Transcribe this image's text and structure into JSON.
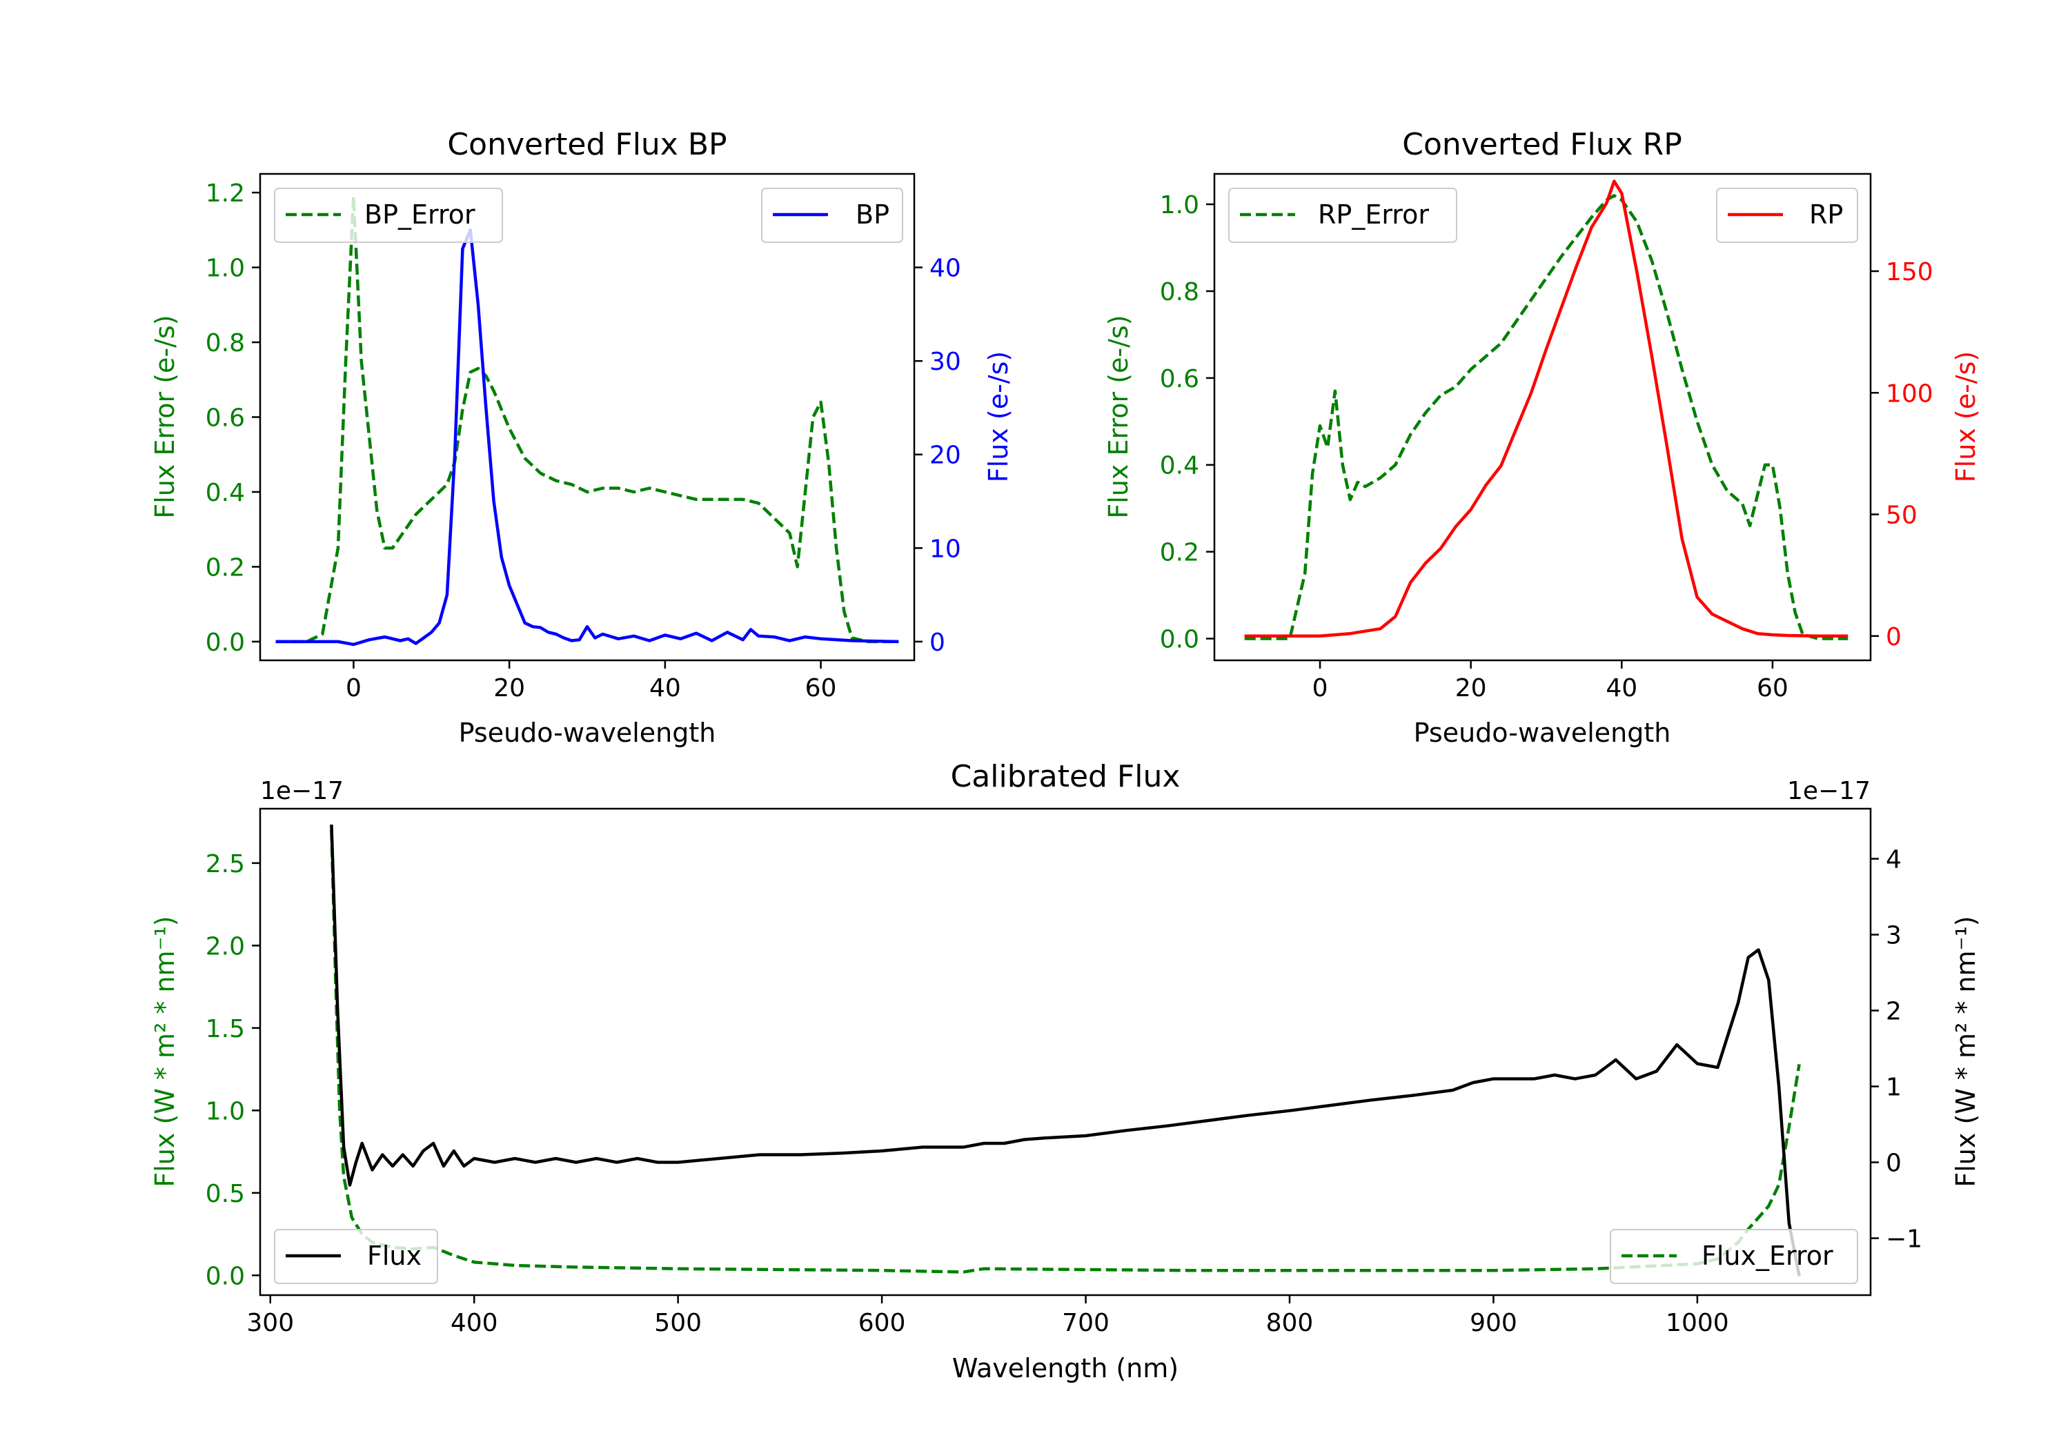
{
  "colors": {
    "error": "#008000",
    "bp": "#0000ff",
    "rp": "#ff0000",
    "flux": "#000000",
    "axis": "#000000"
  },
  "chart_data": [
    {
      "id": "bp",
      "type": "line",
      "title": "Converted Flux BP",
      "xlabel": "Pseudo-wavelength",
      "ylabel_left": "Flux Error (e-/s)",
      "ylabel_right": "Flux (e-/s)",
      "xlim": [
        -12,
        72
      ],
      "ylim_left": [
        -0.05,
        1.25
      ],
      "ylim_right": [
        -2,
        50
      ],
      "xticks": [
        0,
        20,
        40,
        60
      ],
      "yticks_left": [
        0.0,
        0.2,
        0.4,
        0.6,
        0.8,
        1.0,
        1.2
      ],
      "yticks_left_labels": [
        "0.0",
        "0.2",
        "0.4",
        "0.6",
        "0.8",
        "1.0",
        "1.2"
      ],
      "yticks_right": [
        0,
        10,
        20,
        30,
        40
      ],
      "yticks_right_labels": [
        "0",
        "10",
        "20",
        "30",
        "40"
      ],
      "left_color": "error",
      "right_color": "bp",
      "series": [
        {
          "name": "BP_Error",
          "axis": "left",
          "style": "dashed",
          "color": "error",
          "x": [
            -10,
            -6,
            -4,
            -2,
            -1,
            0,
            1,
            2,
            3,
            4,
            5,
            6,
            8,
            10,
            12,
            13,
            14,
            15,
            16,
            17,
            18,
            20,
            22,
            24,
            26,
            28,
            30,
            32,
            34,
            36,
            38,
            40,
            42,
            44,
            46,
            48,
            50,
            52,
            54,
            56,
            57,
            58,
            59,
            60,
            61,
            62,
            63,
            64,
            66,
            70
          ],
          "values": [
            0.0,
            0.0,
            0.02,
            0.25,
            0.75,
            1.19,
            0.75,
            0.55,
            0.35,
            0.25,
            0.25,
            0.28,
            0.34,
            0.38,
            0.42,
            0.48,
            0.62,
            0.72,
            0.73,
            0.71,
            0.67,
            0.57,
            0.49,
            0.45,
            0.43,
            0.42,
            0.4,
            0.41,
            0.41,
            0.4,
            0.41,
            0.4,
            0.39,
            0.38,
            0.38,
            0.38,
            0.38,
            0.37,
            0.33,
            0.29,
            0.2,
            0.4,
            0.6,
            0.64,
            0.48,
            0.25,
            0.08,
            0.01,
            0.0,
            0.0
          ]
        },
        {
          "name": "BP",
          "axis": "right",
          "style": "solid",
          "color": "bp",
          "x": [
            -10,
            -6,
            -2,
            0,
            2,
            4,
            6,
            7,
            8,
            9,
            10,
            11,
            12,
            13,
            14,
            15,
            16,
            17,
            18,
            19,
            20,
            21,
            22,
            23,
            24,
            25,
            26,
            27,
            28,
            29,
            30,
            31,
            32,
            34,
            36,
            38,
            40,
            42,
            44,
            46,
            48,
            50,
            51,
            52,
            54,
            56,
            58,
            60,
            64,
            70
          ],
          "values": [
            0,
            0,
            0,
            -0.3,
            0.2,
            0.5,
            0.1,
            0.3,
            -0.2,
            0.4,
            1,
            2,
            5,
            20,
            42,
            44,
            36,
            25,
            15,
            9,
            6,
            4,
            2,
            1.6,
            1.5,
            1.0,
            0.8,
            0.4,
            0.1,
            0.2,
            1.6,
            0.4,
            0.8,
            0.3,
            0.6,
            0.1,
            0.7,
            0.3,
            0.9,
            0.1,
            1.0,
            0.2,
            1.3,
            0.6,
            0.5,
            0.1,
            0.5,
            0.3,
            0.1,
            0.0
          ]
        }
      ],
      "legend": [
        {
          "label": "BP_Error",
          "position": "top-left"
        },
        {
          "label": "BP",
          "position": "top-right"
        }
      ]
    },
    {
      "id": "rp",
      "type": "line",
      "title": "Converted Flux RP",
      "xlabel": "Pseudo-wavelength",
      "ylabel_left": "Flux Error (e-/s)",
      "ylabel_right": "Flux (e-/s)",
      "xlim": [
        -14,
        73
      ],
      "ylim_left": [
        -0.05,
        1.07
      ],
      "ylim_right": [
        -10,
        190
      ],
      "xticks": [
        0,
        20,
        40,
        60
      ],
      "yticks_left": [
        0.0,
        0.2,
        0.4,
        0.6,
        0.8,
        1.0
      ],
      "yticks_left_labels": [
        "0.0",
        "0.2",
        "0.4",
        "0.6",
        "0.8",
        "1.0"
      ],
      "yticks_right": [
        0,
        50,
        100,
        150
      ],
      "yticks_right_labels": [
        "0",
        "50",
        "100",
        "150"
      ],
      "left_color": "error",
      "right_color": "rp",
      "series": [
        {
          "name": "RP_Error",
          "axis": "left",
          "style": "dashed",
          "color": "error",
          "x": [
            -10,
            -6,
            -4,
            -2,
            -1,
            0,
            1,
            2,
            3,
            4,
            5,
            6,
            8,
            10,
            12,
            14,
            16,
            18,
            20,
            24,
            28,
            32,
            36,
            38,
            39,
            40,
            42,
            44,
            46,
            48,
            50,
            52,
            54,
            56,
            57,
            58,
            59,
            60,
            61,
            62,
            63,
            64,
            66,
            70
          ],
          "values": [
            0.0,
            0.0,
            0.0,
            0.15,
            0.38,
            0.49,
            0.44,
            0.57,
            0.4,
            0.32,
            0.36,
            0.35,
            0.37,
            0.4,
            0.47,
            0.52,
            0.56,
            0.58,
            0.62,
            0.68,
            0.78,
            0.88,
            0.97,
            1.01,
            1.02,
            1.01,
            0.96,
            0.87,
            0.75,
            0.62,
            0.5,
            0.4,
            0.34,
            0.31,
            0.26,
            0.33,
            0.4,
            0.4,
            0.3,
            0.15,
            0.06,
            0.01,
            0.0,
            0.0
          ]
        },
        {
          "name": "RP",
          "axis": "right",
          "style": "solid",
          "color": "rp",
          "x": [
            -10,
            -4,
            0,
            4,
            8,
            10,
            12,
            14,
            16,
            18,
            20,
            22,
            24,
            26,
            28,
            30,
            32,
            34,
            36,
            38,
            39,
            40,
            42,
            44,
            46,
            48,
            50,
            52,
            54,
            56,
            58,
            60,
            62,
            64,
            66,
            70
          ],
          "values": [
            0,
            0,
            0,
            1,
            3,
            8,
            22,
            30,
            36,
            45,
            52,
            62,
            70,
            85,
            100,
            118,
            135,
            152,
            168,
            178,
            187,
            182,
            150,
            115,
            78,
            40,
            16,
            9,
            6,
            3,
            1,
            0.5,
            0.2,
            0.1,
            0,
            0
          ]
        }
      ],
      "legend": [
        {
          "label": "RP_Error",
          "position": "top-left"
        },
        {
          "label": "RP",
          "position": "top-right"
        }
      ]
    },
    {
      "id": "cal",
      "type": "line",
      "title": "Calibrated Flux",
      "xlabel": "Wavelength (nm)",
      "ylabel_left": "Flux (W * m² * nm⁻¹)",
      "ylabel_right": "Flux (W * m² * nm⁻¹)",
      "offset_left": "1e−17",
      "offset_right": "1e−17",
      "xlim": [
        295,
        1085
      ],
      "ylim_left": [
        -0.12,
        2.83
      ],
      "ylim_right": [
        -1.75,
        4.66
      ],
      "xticks": [
        300,
        400,
        500,
        600,
        700,
        800,
        900,
        1000
      ],
      "yticks_left": [
        0.0,
        0.5,
        1.0,
        1.5,
        2.0,
        2.5
      ],
      "yticks_left_labels": [
        "0.0",
        "0.5",
        "1.0",
        "1.5",
        "2.0",
        "2.5"
      ],
      "yticks_right": [
        -1,
        0,
        1,
        2,
        3,
        4
      ],
      "yticks_right_labels": [
        "−1",
        "0",
        "1",
        "2",
        "3",
        "4"
      ],
      "left_color": "error",
      "right_color": "flux",
      "series": [
        {
          "name": "Flux_Error",
          "axis": "left",
          "style": "dashed",
          "color": "error",
          "x": [
            330,
            332,
            334,
            336,
            340,
            345,
            350,
            360,
            370,
            380,
            390,
            400,
            420,
            450,
            500,
            550,
            600,
            640,
            650,
            700,
            750,
            800,
            850,
            900,
            950,
            1000,
            1010,
            1020,
            1025,
            1030,
            1035,
            1040,
            1045,
            1050
          ],
          "values": [
            2.7,
            1.8,
            1.0,
            0.6,
            0.35,
            0.25,
            0.2,
            0.17,
            0.16,
            0.17,
            0.12,
            0.08,
            0.06,
            0.05,
            0.04,
            0.035,
            0.03,
            0.02,
            0.04,
            0.035,
            0.03,
            0.03,
            0.03,
            0.03,
            0.04,
            0.07,
            0.1,
            0.2,
            0.28,
            0.35,
            0.42,
            0.55,
            0.9,
            1.28
          ]
        },
        {
          "name": "Flux",
          "axis": "right",
          "style": "solid",
          "color": "flux",
          "x": [
            330,
            333,
            336,
            339,
            342,
            345,
            350,
            355,
            360,
            365,
            370,
            375,
            380,
            385,
            390,
            395,
            400,
            410,
            420,
            430,
            440,
            450,
            460,
            470,
            480,
            490,
            500,
            520,
            540,
            560,
            580,
            600,
            620,
            640,
            650,
            660,
            670,
            680,
            700,
            720,
            740,
            760,
            780,
            800,
            820,
            840,
            860,
            880,
            890,
            900,
            920,
            930,
            940,
            950,
            960,
            970,
            980,
            990,
            1000,
            1010,
            1020,
            1025,
            1030,
            1035,
            1040,
            1045,
            1050
          ],
          "values": [
            4.45,
            2.0,
            0.2,
            -0.3,
            0.0,
            0.25,
            -0.1,
            0.1,
            -0.05,
            0.1,
            -0.05,
            0.15,
            0.25,
            -0.05,
            0.15,
            -0.05,
            0.05,
            0.0,
            0.05,
            0.0,
            0.05,
            0.0,
            0.05,
            0.0,
            0.05,
            0.0,
            0.0,
            0.05,
            0.1,
            0.1,
            0.12,
            0.15,
            0.2,
            0.2,
            0.25,
            0.25,
            0.3,
            0.32,
            0.35,
            0.42,
            0.48,
            0.55,
            0.62,
            0.68,
            0.75,
            0.82,
            0.88,
            0.95,
            1.05,
            1.1,
            1.1,
            1.15,
            1.1,
            1.15,
            1.35,
            1.1,
            1.2,
            1.55,
            1.3,
            1.25,
            2.1,
            2.7,
            2.8,
            2.4,
            1.0,
            -0.8,
            -1.5
          ]
        }
      ],
      "legend": [
        {
          "label": "Flux",
          "position": "bottom-left"
        },
        {
          "label": "Flux_Error",
          "position": "bottom-right"
        }
      ]
    }
  ]
}
